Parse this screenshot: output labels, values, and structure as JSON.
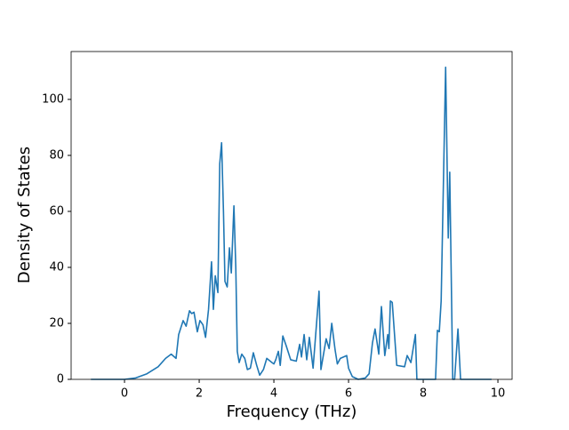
{
  "chart_data": {
    "type": "line",
    "xlabel": "Frequency (THz)",
    "ylabel": "Density of States",
    "xlim": [
      -1.43,
      10.38
    ],
    "ylim": [
      0,
      117.1
    ],
    "xticks": [
      0,
      2,
      4,
      6,
      8,
      10
    ],
    "yticks": [
      0,
      20,
      40,
      60,
      80,
      100
    ],
    "grid": false,
    "series": [
      {
        "color": "#1f77b4",
        "x": [
          -0.9,
          0,
          0.3,
          0.6,
          0.9,
          1.1,
          1.25,
          1.38,
          1.45,
          1.57,
          1.65,
          1.74,
          1.8,
          1.86,
          1.95,
          2.02,
          2.1,
          2.17,
          2.25,
          2.33,
          2.38,
          2.43,
          2.5,
          2.55,
          2.6,
          2.65,
          2.69,
          2.75,
          2.81,
          2.86,
          2.93,
          2.98,
          3.02,
          3.07,
          3.14,
          3.22,
          3.29,
          3.37,
          3.45,
          3.54,
          3.62,
          3.72,
          3.81,
          3.95,
          4.0,
          4.05,
          4.12,
          4.17,
          4.24,
          4.33,
          4.45,
          4.6,
          4.69,
          4.74,
          4.81,
          4.88,
          4.95,
          5.05,
          5.21,
          5.26,
          5.4,
          5.48,
          5.55,
          5.64,
          5.7,
          5.78,
          5.95,
          6.0,
          6.1,
          6.26,
          6.45,
          6.55,
          6.64,
          6.71,
          6.81,
          6.88,
          6.97,
          7.05,
          7.08,
          7.12,
          7.17,
          7.29,
          7.5,
          7.57,
          7.67,
          7.79,
          7.83,
          8.33,
          8.38,
          8.43,
          8.48,
          8.6,
          8.67,
          8.71,
          8.79,
          8.84,
          8.93,
          9.0,
          9.83
        ],
        "values": [
          0,
          0,
          0.5,
          2,
          4.5,
          7.5,
          9,
          7.5,
          16,
          21,
          19,
          24.5,
          23.5,
          24,
          17,
          21,
          19.5,
          15,
          25,
          42,
          25,
          37,
          31,
          77,
          84.5,
          60,
          35,
          33,
          47,
          38,
          62,
          40,
          10,
          6,
          9,
          7.5,
          3.5,
          4,
          9.5,
          5,
          1.5,
          3.5,
          7.5,
          6,
          5.5,
          7,
          10,
          5,
          15.5,
          12,
          7,
          6.5,
          12.5,
          8,
          16,
          7,
          15,
          4,
          31.5,
          3.5,
          14.5,
          11,
          20,
          10.5,
          5.5,
          7.5,
          8.5,
          4,
          1,
          0,
          0.5,
          2,
          13,
          18,
          9,
          26,
          8.5,
          16,
          11,
          28,
          27.5,
          5,
          4.5,
          8.5,
          6,
          16,
          0,
          0,
          17.5,
          17,
          28,
          111.5,
          50.5,
          74,
          0,
          0,
          18,
          0,
          0
        ]
      }
    ]
  }
}
